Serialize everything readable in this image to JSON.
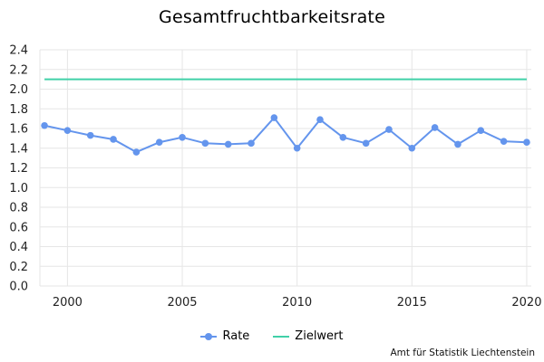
{
  "chart_data": {
    "type": "line",
    "title": "Gesamtfruchtbarkeitsrate",
    "x": [
      1999,
      2000,
      2001,
      2002,
      2003,
      2004,
      2005,
      2006,
      2007,
      2008,
      2009,
      2010,
      2011,
      2012,
      2013,
      2014,
      2015,
      2016,
      2017,
      2018,
      2019,
      2020
    ],
    "xticks": [
      "2000",
      "2005",
      "2010",
      "2015",
      "2020"
    ],
    "yticks": [
      "0.0",
      "0.2",
      "0.4",
      "0.6",
      "0.8",
      "1.0",
      "1.2",
      "1.4",
      "1.6",
      "1.8",
      "2.0",
      "2.2",
      "2.4"
    ],
    "xlim": [
      1998.8,
      2020.2
    ],
    "ylim": [
      0,
      2.4
    ],
    "grid": true,
    "legend_position": "bottom-center",
    "series": [
      {
        "name": "Rate",
        "color": "#6495ed",
        "markers": true,
        "values": [
          1.63,
          1.58,
          1.53,
          1.49,
          1.36,
          1.46,
          1.51,
          1.45,
          1.44,
          1.45,
          1.71,
          1.4,
          1.69,
          1.51,
          1.45,
          1.59,
          1.4,
          1.61,
          1.44,
          1.58,
          1.47,
          1.46
        ]
      },
      {
        "name": "Zielwert",
        "color": "#40d0a8",
        "markers": false,
        "values": [
          2.1,
          2.1,
          2.1,
          2.1,
          2.1,
          2.1,
          2.1,
          2.1,
          2.1,
          2.1,
          2.1,
          2.1,
          2.1,
          2.1,
          2.1,
          2.1,
          2.1,
          2.1,
          2.1,
          2.1,
          2.1,
          2.1
        ]
      }
    ]
  },
  "credit": "Amt für Statistik Liechtenstein"
}
